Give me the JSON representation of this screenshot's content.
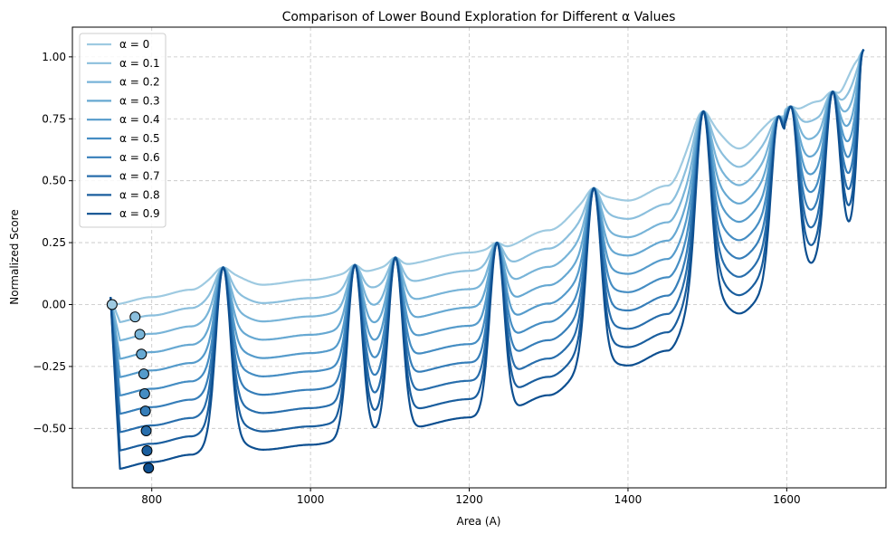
{
  "chart_data": {
    "type": "line",
    "title": "Comparison of Lower Bound Exploration for Different α Values",
    "xlabel": "Area (A)",
    "ylabel": "Normalized Score",
    "xlim": [
      700,
      1725
    ],
    "ylim": [
      -0.74,
      1.12
    ],
    "xticks": [
      800,
      1000,
      1200,
      1400,
      1600
    ],
    "xtick_labels": [
      "800",
      "1000",
      "1200",
      "1400",
      "1600"
    ],
    "yticks": [
      -0.5,
      -0.25,
      0.0,
      0.25,
      0.5,
      0.75,
      1.0
    ],
    "ytick_labels": [
      "−0.50",
      "−0.25",
      "0.00",
      "0.25",
      "0.50",
      "0.75",
      "1.00"
    ],
    "grid": true,
    "legend_position": "top-left",
    "base_curve": [
      [
        750,
        0.0
      ],
      [
        800,
        0.03
      ],
      [
        850,
        0.06
      ],
      [
        890,
        0.13
      ],
      [
        940,
        0.08
      ],
      [
        1000,
        0.1
      ],
      [
        1060,
        0.13
      ],
      [
        1110,
        0.16
      ],
      [
        1200,
        0.21
      ],
      [
        1240,
        0.23
      ],
      [
        1300,
        0.3
      ],
      [
        1360,
        0.44
      ],
      [
        1400,
        0.42
      ],
      [
        1450,
        0.48
      ],
      [
        1495,
        0.74
      ],
      [
        1540,
        0.63
      ],
      [
        1585,
        0.74
      ],
      [
        1605,
        0.78
      ],
      [
        1640,
        0.82
      ],
      [
        1660,
        0.84
      ],
      [
        1695,
        1.0
      ]
    ],
    "peaks": [
      [
        890,
        0.15
      ],
      [
        1056,
        0.16
      ],
      [
        1107,
        0.19
      ],
      [
        1235,
        0.25
      ],
      [
        1357,
        0.47
      ],
      [
        1495,
        0.78
      ],
      [
        1590,
        0.76
      ],
      [
        1605,
        0.8
      ],
      [
        1658,
        0.86
      ]
    ],
    "series": [
      {
        "name": "α = 0",
        "alpha": 0.0,
        "color": "#9ecae1",
        "start": [
          750,
          0.0
        ]
      },
      {
        "name": "α = 0.1",
        "alpha": 0.1,
        "color": "#8bbfdd",
        "start": [
          779,
          -0.05
        ]
      },
      {
        "name": "α = 0.2",
        "alpha": 0.2,
        "color": "#78b4d8",
        "start": [
          785,
          -0.12
        ]
      },
      {
        "name": "α = 0.3",
        "alpha": 0.3,
        "color": "#66a8d2",
        "start": [
          787,
          -0.2
        ]
      },
      {
        "name": "α = 0.4",
        "alpha": 0.4,
        "color": "#559bcb",
        "start": [
          790,
          -0.28
        ]
      },
      {
        "name": "α = 0.5",
        "alpha": 0.5,
        "color": "#458dc3",
        "start": [
          791,
          -0.36
        ]
      },
      {
        "name": "α = 0.6",
        "alpha": 0.6,
        "color": "#367eb9",
        "start": [
          792,
          -0.43
        ]
      },
      {
        "name": "α = 0.7",
        "alpha": 0.7,
        "color": "#286eac",
        "start": [
          793,
          -0.51
        ]
      },
      {
        "name": "α = 0.8",
        "alpha": 0.8,
        "color": "#1a5e9e",
        "start": [
          794,
          -0.59
        ]
      },
      {
        "name": "α = 0.9",
        "alpha": 0.9,
        "color": "#0d4f90",
        "start": [
          796,
          -0.66
        ]
      }
    ]
  }
}
